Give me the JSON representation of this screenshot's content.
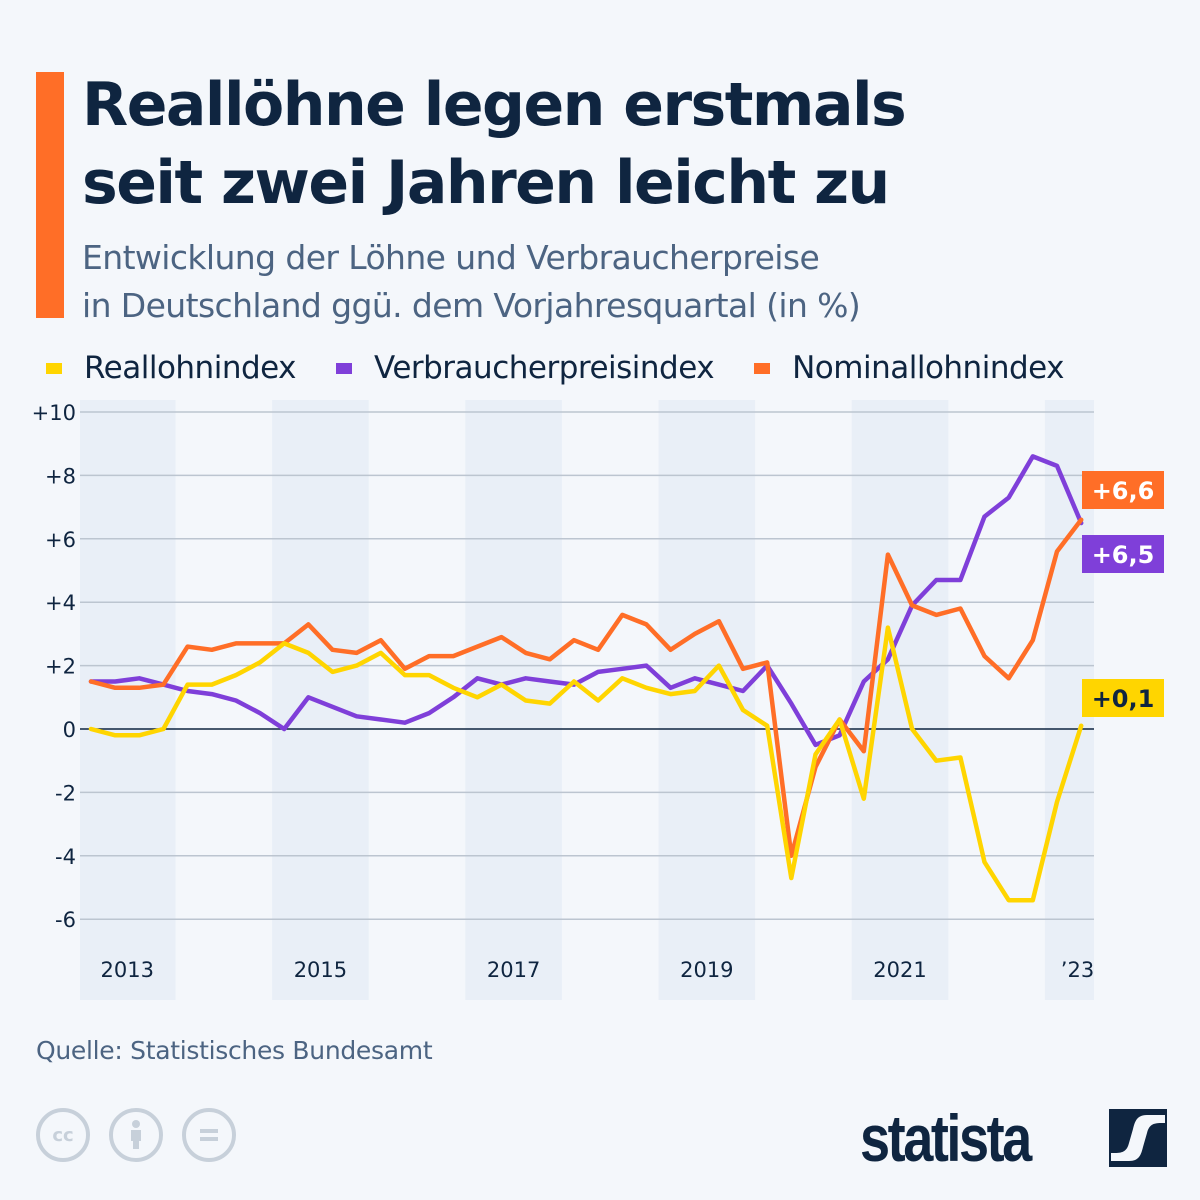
{
  "header": {
    "title_line1": "Reallöhne legen erstmals",
    "title_line2": "seit zwei Jahren leicht zu",
    "subtitle_line1": "Entwicklung der Löhne und Verbraucherpreise",
    "subtitle_line2": "in Deutschland ggü. dem Vorjahresquartal (in %)",
    "accent_color": "#ff6e27"
  },
  "legend": [
    {
      "label": "Reallohnindex",
      "color": "#ffd500"
    },
    {
      "label": "Verbraucherpreisindex",
      "color": "#7f3fd9"
    },
    {
      "label": "Nominallohnindex",
      "color": "#ff6e27"
    }
  ],
  "chart_data": {
    "type": "line",
    "title": "Reallöhne legen erstmals seit zwei Jahren leicht zu",
    "xlabel": "",
    "ylabel": "in %",
    "ylim": [
      -7,
      10
    ],
    "yticks": [
      10,
      8,
      6,
      4,
      2,
      0,
      -2,
      -4,
      -6
    ],
    "ytick_labels": [
      "+10",
      "+8",
      "+6",
      "+4",
      "+2",
      "0",
      "-2",
      "-4",
      "-6"
    ],
    "x": [
      "2013 Q1",
      "2013 Q2",
      "2013 Q3",
      "2013 Q4",
      "2014 Q1",
      "2014 Q2",
      "2014 Q3",
      "2014 Q4",
      "2015 Q1",
      "2015 Q2",
      "2015 Q3",
      "2015 Q4",
      "2016 Q1",
      "2016 Q2",
      "2016 Q3",
      "2016 Q4",
      "2017 Q1",
      "2017 Q2",
      "2017 Q3",
      "2017 Q4",
      "2018 Q1",
      "2018 Q2",
      "2018 Q3",
      "2018 Q4",
      "2019 Q1",
      "2019 Q2",
      "2019 Q3",
      "2019 Q4",
      "2020 Q1",
      "2020 Q2",
      "2020 Q3",
      "2020 Q4",
      "2021 Q1",
      "2021 Q2",
      "2021 Q3",
      "2021 Q4",
      "2022 Q1",
      "2022 Q2",
      "2022 Q3",
      "2022 Q4",
      "2023 Q1",
      "2023 Q2"
    ],
    "year_labels": [
      {
        "label": "2013",
        "start_index": 0
      },
      {
        "label": "2015",
        "start_index": 8
      },
      {
        "label": "2017",
        "start_index": 16
      },
      {
        "label": "2019",
        "start_index": 24
      },
      {
        "label": "2021",
        "start_index": 32
      },
      {
        "label": "’23",
        "start_index": 40
      }
    ],
    "series": [
      {
        "name": "Nominallohnindex",
        "color": "#ff6e27",
        "end_label": "+6,6",
        "values": [
          1.5,
          1.3,
          1.3,
          1.4,
          2.6,
          2.5,
          2.7,
          2.7,
          2.7,
          3.3,
          2.5,
          2.4,
          2.8,
          1.9,
          2.3,
          2.3,
          2.6,
          2.9,
          2.4,
          2.2,
          2.8,
          2.5,
          3.6,
          3.3,
          2.5,
          3.0,
          3.4,
          1.9,
          2.1,
          -4.0,
          -1.2,
          0.3,
          -0.7,
          5.5,
          3.9,
          3.6,
          3.8,
          2.3,
          1.6,
          2.8,
          5.6,
          6.6
        ]
      },
      {
        "name": "Verbraucherpreisindex",
        "color": "#7f3fd9",
        "end_label": "+6,5",
        "values": [
          1.5,
          1.5,
          1.6,
          1.4,
          1.2,
          1.1,
          0.9,
          0.5,
          0.0,
          1.0,
          0.7,
          0.4,
          0.3,
          0.2,
          0.5,
          1.0,
          1.6,
          1.4,
          1.6,
          1.5,
          1.4,
          1.8,
          1.9,
          2.0,
          1.3,
          1.6,
          1.4,
          1.2,
          2.0,
          0.8,
          -0.5,
          -0.2,
          1.5,
          2.2,
          3.9,
          4.7,
          4.7,
          6.7,
          7.3,
          8.6,
          8.3,
          6.5
        ]
      },
      {
        "name": "Reallohnindex",
        "color": "#ffd500",
        "end_label": "+0,1",
        "values": [
          0.0,
          -0.2,
          -0.2,
          0.0,
          1.4,
          1.4,
          1.7,
          2.1,
          2.7,
          2.4,
          1.8,
          2.0,
          2.4,
          1.7,
          1.7,
          1.3,
          1.0,
          1.4,
          0.9,
          0.8,
          1.5,
          0.9,
          1.6,
          1.3,
          1.1,
          1.2,
          2.0,
          0.6,
          0.1,
          -4.7,
          -0.8,
          0.3,
          -2.2,
          3.2,
          0.0,
          -1.0,
          -0.9,
          -4.2,
          -5.4,
          -5.4,
          -2.3,
          0.1
        ]
      }
    ],
    "grid": true,
    "legend_position": "top-left"
  },
  "footer": {
    "source": "Quelle: Statistisches Bundesamt",
    "license_icons": [
      "cc-icon",
      "attribution-icon",
      "no-derivatives-icon"
    ],
    "cc_label": "cc",
    "logo_text": "statista"
  }
}
